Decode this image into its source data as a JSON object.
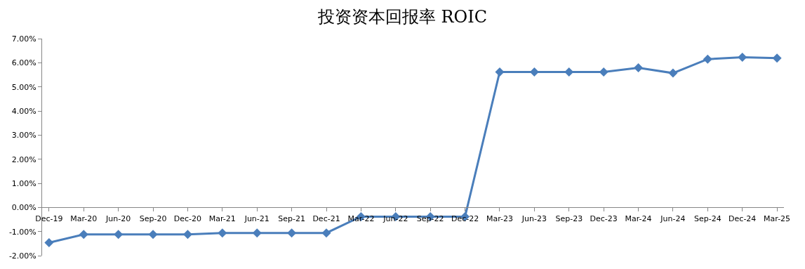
{
  "chart_data": {
    "type": "line",
    "title": "投资资本回报率 ROIC",
    "categories": [
      "Dec-19",
      "Mar-20",
      "Jun-20",
      "Sep-20",
      "Dec-20",
      "Mar-21",
      "Jun-21",
      "Sep-21",
      "Dec-21",
      "Mar-22",
      "Jun-22",
      "Sep-22",
      "Dec-22",
      "Mar-23",
      "Jun-23",
      "Sep-23",
      "Dec-23",
      "Mar-24",
      "Jun-24",
      "Sep-24",
      "Dec-24",
      "Mar-25"
    ],
    "series": [
      {
        "color": "#4a7ebb",
        "values": [
          -1.46,
          -1.12,
          -1.12,
          -1.12,
          -1.12,
          -1.06,
          -1.06,
          -1.06,
          -1.06,
          -0.38,
          -0.38,
          -0.38,
          -0.38,
          5.62,
          5.62,
          5.62,
          5.62,
          5.79,
          5.57,
          6.15,
          6.23,
          6.19
        ]
      }
    ],
    "ylim": [
      -2,
      7
    ],
    "yticks": [
      {
        "value": -2,
        "label": "-2.00%"
      },
      {
        "value": -1,
        "label": "-1.00%"
      },
      {
        "value": 0,
        "label": "0.00%"
      },
      {
        "value": 1,
        "label": "1.00%"
      },
      {
        "value": 2,
        "label": "2.00%"
      },
      {
        "value": 3,
        "label": "3.00%"
      },
      {
        "value": 4,
        "label": "4.00%"
      },
      {
        "value": 5,
        "label": "5.00%"
      },
      {
        "value": 6,
        "label": "6.00%"
      },
      {
        "value": 7,
        "label": "7.00%"
      }
    ],
    "marker": "diamond",
    "line_style": "solid"
  }
}
